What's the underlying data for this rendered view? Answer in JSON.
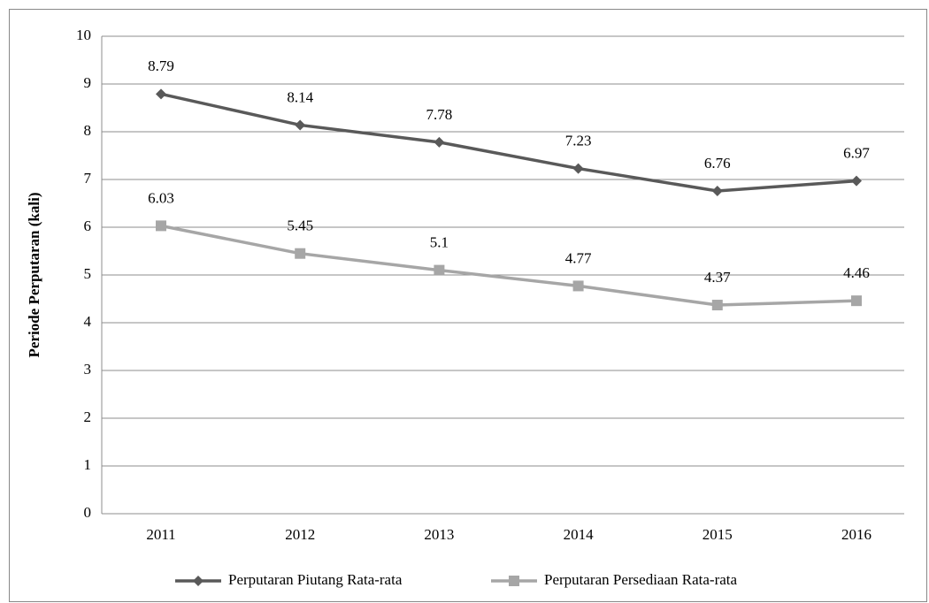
{
  "chart_data": {
    "type": "line",
    "y_label": "Periode Perputaran (kali)",
    "categories": [
      "2011",
      "2012",
      "2013",
      "2014",
      "2015",
      "2016"
    ],
    "series": [
      {
        "name": "Perputaran Piutang Rata-rata",
        "color": "#595959",
        "marker": "diamond",
        "values": [
          8.79,
          8.14,
          7.78,
          7.23,
          6.76,
          6.97
        ]
      },
      {
        "name": "Perputaran Persediaan Rata-rata",
        "color": "#a6a6a6",
        "marker": "square",
        "values": [
          6.03,
          5.45,
          5.1,
          4.77,
          4.37,
          4.46
        ]
      }
    ],
    "ylim": [
      0,
      10
    ],
    "yticks": [
      0,
      1,
      2,
      3,
      4,
      5,
      6,
      7,
      8,
      9,
      10
    ],
    "grid": true,
    "legend": "bottom"
  }
}
